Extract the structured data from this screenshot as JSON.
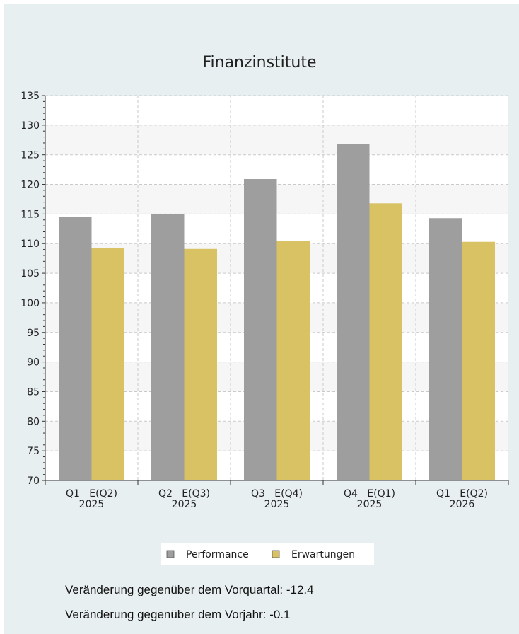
{
  "chart_data": {
    "type": "bar",
    "title": "Finanzinstitute",
    "categories": [
      {
        "top": "Q1   E(Q2)",
        "bottom": "2025"
      },
      {
        "top": "Q2   E(Q3)",
        "bottom": "2025"
      },
      {
        "top": "Q3   E(Q4)",
        "bottom": "2025"
      },
      {
        "top": "Q4   E(Q1)",
        "bottom": "2025"
      },
      {
        "top": "Q1   E(Q2)",
        "bottom": "2026"
      }
    ],
    "series": [
      {
        "name": "Performance",
        "color": "#9e9e9e",
        "values": [
          114.5,
          115.0,
          120.9,
          126.8,
          114.3
        ]
      },
      {
        "name": "Erwartungen",
        "color": "#d9c264",
        "values": [
          109.3,
          109.1,
          110.5,
          116.8,
          110.3
        ]
      }
    ],
    "ylim": [
      70,
      135
    ],
    "yticks": [
      70,
      75,
      80,
      85,
      90,
      95,
      100,
      105,
      110,
      115,
      120,
      125,
      130,
      135
    ],
    "grid": true,
    "legend_position": "bottom"
  },
  "stats": {
    "qoq": "Veränderung gegenüber dem Vorquartal: -12.4",
    "yoy": "Veränderung gegenüber dem Vorjahr: -0.1"
  }
}
